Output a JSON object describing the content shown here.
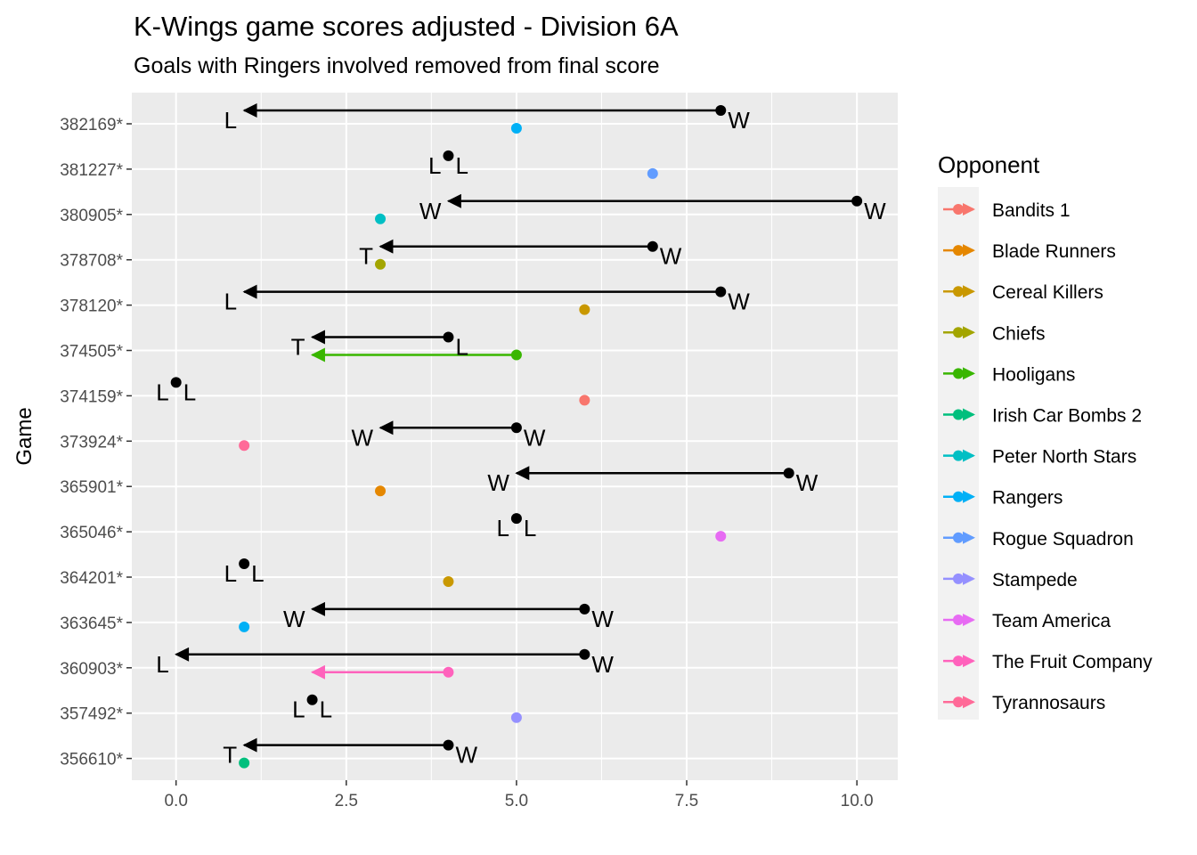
{
  "chart_data": {
    "type": "arrow-dot",
    "title": "K-Wings game scores adjusted - Division 6A",
    "subtitle": "Goals with Ringers involved removed from final score",
    "ylabel": "Game",
    "xlim": [
      -0.65,
      10.6
    ],
    "x_ticks": [
      0,
      2.5,
      5,
      7.5,
      10
    ],
    "x_tick_labels": [
      "0.0",
      "2.5",
      "5.0",
      "7.5",
      "10.0"
    ],
    "legend": {
      "title": "Opponent",
      "entries": [
        {
          "name": "Bandits 1",
          "color": "#F8766D"
        },
        {
          "name": "Blade Runners",
          "color": "#E58700"
        },
        {
          "name": "Cereal Killers",
          "color": "#C99800"
        },
        {
          "name": "Chiefs",
          "color": "#A3A500"
        },
        {
          "name": "Hooligans",
          "color": "#39B600"
        },
        {
          "name": "Irish Car Bombs 2",
          "color": "#00BF7D"
        },
        {
          "name": "Peter North Stars",
          "color": "#00BFC4"
        },
        {
          "name": "Rangers",
          "color": "#00B0F6"
        },
        {
          "name": "Rogue Squadron",
          "color": "#619CFF"
        },
        {
          "name": "Stampede",
          "color": "#9590FF"
        },
        {
          "name": "Team America",
          "color": "#E76BF3"
        },
        {
          "name": "The Fruit Company",
          "color": "#FF62BC"
        },
        {
          "name": "Tyrannosaurs",
          "color": "#FF6A98"
        }
      ]
    },
    "games": [
      {
        "game": "382169*",
        "kw_orig": 8,
        "kw_adj": 1,
        "opp": "Rangers",
        "opp_orig": 5,
        "opp_adj": 5,
        "orig_result": "W",
        "adj_result": "L"
      },
      {
        "game": "381227*",
        "kw_orig": 4,
        "kw_adj": 4,
        "opp": "Rogue Squadron",
        "opp_orig": 7,
        "opp_adj": 7,
        "orig_result": "L",
        "adj_result": "L"
      },
      {
        "game": "380905*",
        "kw_orig": 10,
        "kw_adj": 4,
        "opp": "Peter North Stars",
        "opp_orig": 3,
        "opp_adj": 3,
        "orig_result": "W",
        "adj_result": "W"
      },
      {
        "game": "378708*",
        "kw_orig": 7,
        "kw_adj": 3,
        "opp": "Chiefs",
        "opp_orig": 3,
        "opp_adj": 3,
        "orig_result": "W",
        "adj_result": "T"
      },
      {
        "game": "378120*",
        "kw_orig": 8,
        "kw_adj": 1,
        "opp": "Cereal Killers",
        "opp_orig": 6,
        "opp_adj": 6,
        "orig_result": "W",
        "adj_result": "L"
      },
      {
        "game": "374505*",
        "kw_orig": 4,
        "kw_adj": 2,
        "opp": "Hooligans",
        "opp_orig": 5,
        "opp_adj": 2,
        "orig_result": "L",
        "adj_result": "T"
      },
      {
        "game": "374159*",
        "kw_orig": 0,
        "kw_adj": 0,
        "opp": "Bandits 1",
        "opp_orig": 6,
        "opp_adj": 6,
        "orig_result": "L",
        "adj_result": "L"
      },
      {
        "game": "373924*",
        "kw_orig": 5,
        "kw_adj": 3,
        "opp": "Tyrannosaurs",
        "opp_orig": 1,
        "opp_adj": 1,
        "orig_result": "W",
        "adj_result": "W"
      },
      {
        "game": "365901*",
        "kw_orig": 9,
        "kw_adj": 5,
        "opp": "Blade Runners",
        "opp_orig": 3,
        "opp_adj": 3,
        "orig_result": "W",
        "adj_result": "W"
      },
      {
        "game": "365046*",
        "kw_orig": 5,
        "kw_adj": 5,
        "opp": "Team America",
        "opp_orig": 8,
        "opp_adj": 8,
        "orig_result": "L",
        "adj_result": "L"
      },
      {
        "game": "364201*",
        "kw_orig": 1,
        "kw_adj": 1,
        "opp": "Cereal Killers",
        "opp_orig": 4,
        "opp_adj": 4,
        "orig_result": "L",
        "adj_result": "L"
      },
      {
        "game": "363645*",
        "kw_orig": 6,
        "kw_adj": 2,
        "opp": "Rangers",
        "opp_orig": 1,
        "opp_adj": 1,
        "orig_result": "W",
        "adj_result": "W"
      },
      {
        "game": "360903*",
        "kw_orig": 6,
        "kw_adj": 0,
        "opp": "The Fruit Company",
        "opp_orig": 4,
        "opp_adj": 2,
        "orig_result": "W",
        "adj_result": "L"
      },
      {
        "game": "357492*",
        "kw_orig": 2,
        "kw_adj": 2,
        "opp": "Stampede",
        "opp_orig": 5,
        "opp_adj": 5,
        "orig_result": "L",
        "adj_result": "L"
      },
      {
        "game": "356610*",
        "kw_orig": 4,
        "kw_adj": 1,
        "opp": "Irish Car Bombs 2",
        "opp_orig": 1,
        "opp_adj": 1,
        "orig_result": "W",
        "adj_result": "T"
      }
    ]
  }
}
